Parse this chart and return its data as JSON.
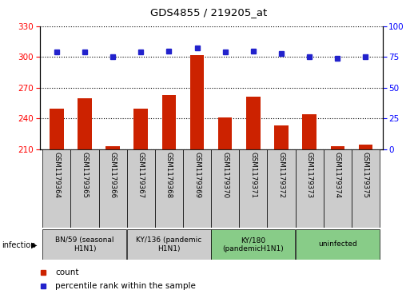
{
  "title": "GDS4855 / 219205_at",
  "samples": [
    "GSM1179364",
    "GSM1179365",
    "GSM1179366",
    "GSM1179367",
    "GSM1179368",
    "GSM1179369",
    "GSM1179370",
    "GSM1179371",
    "GSM1179372",
    "GSM1179373",
    "GSM1179374",
    "GSM1179375"
  ],
  "counts": [
    250,
    260,
    213,
    250,
    263,
    302,
    241,
    261,
    233,
    244,
    213,
    215
  ],
  "percentiles": [
    79,
    79,
    75,
    79,
    80,
    82,
    79,
    80,
    78,
    75,
    74,
    75
  ],
  "ylim_left": [
    210,
    330
  ],
  "ylim_right": [
    0,
    100
  ],
  "yticks_left": [
    210,
    240,
    270,
    300,
    330
  ],
  "yticks_right": [
    0,
    25,
    50,
    75,
    100
  ],
  "groups": [
    {
      "label": "BN/59 (seasonal\nH1N1)",
      "start": 0,
      "end": 3,
      "color": "#cccccc"
    },
    {
      "label": "KY/136 (pandemic\nH1N1)",
      "start": 3,
      "end": 6,
      "color": "#cccccc"
    },
    {
      "label": "KY/180\n(pandemicH1N1)",
      "start": 6,
      "end": 9,
      "color": "#88cc88"
    },
    {
      "label": "uninfected",
      "start": 9,
      "end": 12,
      "color": "#88cc88"
    }
  ],
  "sample_bg": "#cccccc",
  "bar_color": "#cc2200",
  "dot_color": "#2222cc",
  "infection_label": "infection",
  "legend_count_label": "count",
  "legend_pct_label": "percentile rank within the sample",
  "plot_bg": "#ffffff",
  "bar_width": 0.5
}
